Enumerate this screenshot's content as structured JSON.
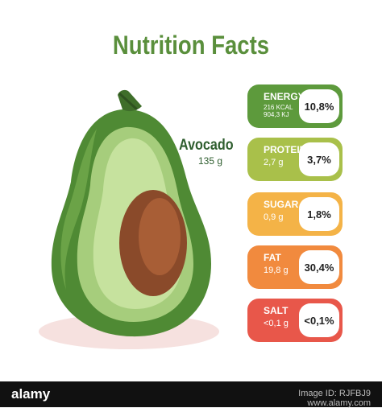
{
  "title": "Nutrition Facts",
  "food": {
    "name": "Avocado",
    "weight": "135 g"
  },
  "cards": [
    {
      "label": "ENERGY",
      "sub1": "216 KCAL",
      "sub2": "904,3 KJ",
      "percent": "10,8%",
      "color": "#5d9a3c"
    },
    {
      "label": "PROTEIN",
      "sub1": "2,7 g",
      "percent": "3,7%",
      "color": "#a9c04a"
    },
    {
      "label": "SUGAR",
      "sub1": "0,9 g",
      "percent": "1,8%",
      "color": "#f4b347"
    },
    {
      "label": "FAT",
      "sub1": "19,8 g",
      "percent": "30,4%",
      "color": "#f18a3e"
    },
    {
      "label": "SALT",
      "sub1": "<0,1 g",
      "percent": "<0,1%",
      "color": "#e8574a"
    }
  ],
  "footer": {
    "logo": "alamy",
    "image_id": "Image ID: RJFBJ9",
    "site": "www.alamy.com"
  }
}
